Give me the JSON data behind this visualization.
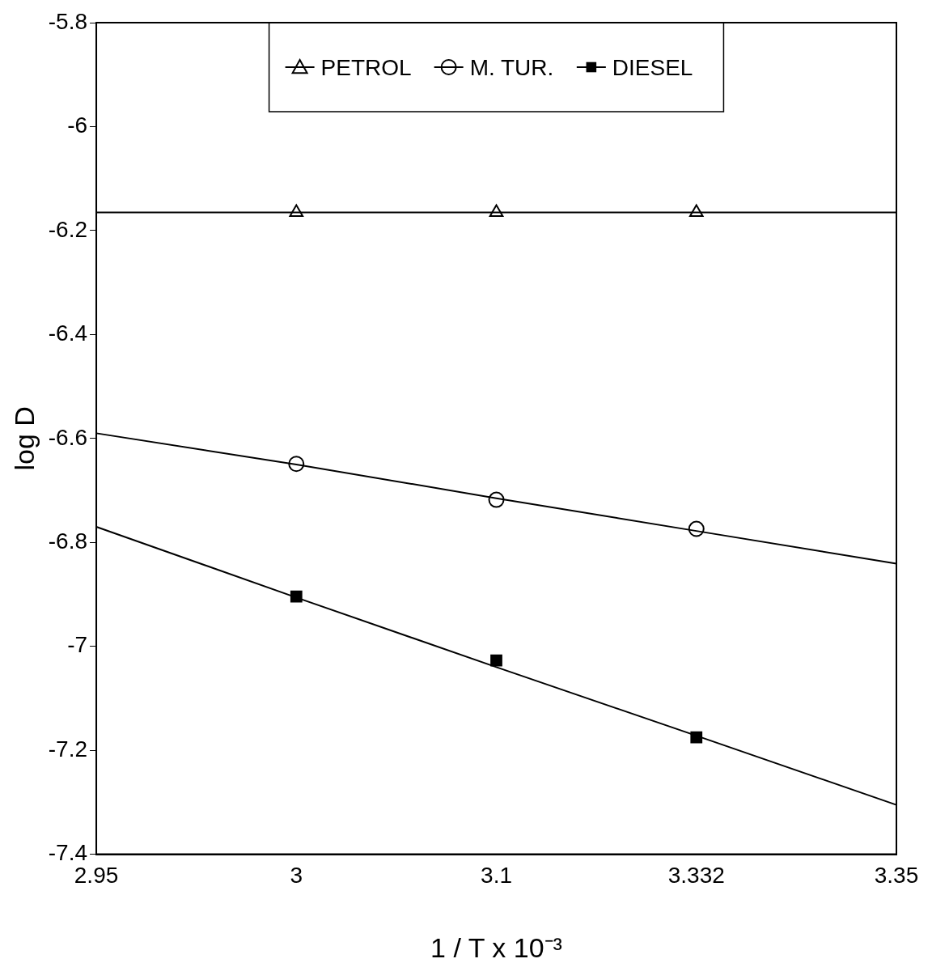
{
  "chart_data": {
    "type": "scatter",
    "xlabel": "1 / T x 10⁻³",
    "ylabel": "log D",
    "categories": [
      "2.95",
      "3",
      "3.1",
      "3.332",
      "3.35"
    ],
    "ylim": [
      -7.4,
      -5.8
    ],
    "yticks": [
      -7.4,
      -7.2,
      -7,
      -6.8,
      -6.6,
      -6.4,
      -6.2,
      -6,
      -5.8
    ],
    "grid": false,
    "legend": "top",
    "series": [
      {
        "name": "PETROL",
        "type": "scatter",
        "marker": "triangle",
        "color": "#000000",
        "values": [
          null,
          -6.165,
          -6.165,
          -6.165,
          null
        ]
      },
      {
        "name": "M. TUR.",
        "type": "scatter",
        "marker": "circle",
        "color": "#000000",
        "values": [
          null,
          -6.649,
          -6.718,
          -6.774,
          null
        ]
      },
      {
        "name": "DIESEL",
        "type": "scatter",
        "marker": "square",
        "color": "#000000",
        "values": [
          null,
          -6.904,
          -7.027,
          -7.175,
          null
        ]
      },
      {
        "type": "line",
        "marker": "none",
        "color": "#000000",
        "values": [
          -6.165,
          -6.165,
          -6.165,
          -6.165,
          -6.165
        ]
      },
      {
        "type": "line",
        "marker": "none",
        "color": "#000000",
        "values": [
          -6.59,
          -6.65,
          -6.715,
          -6.778,
          -6.841
        ]
      },
      {
        "type": "line",
        "marker": "none",
        "color": "#000000",
        "values": [
          -6.77,
          -6.906,
          -7.04,
          -7.172,
          -7.305
        ]
      }
    ]
  }
}
